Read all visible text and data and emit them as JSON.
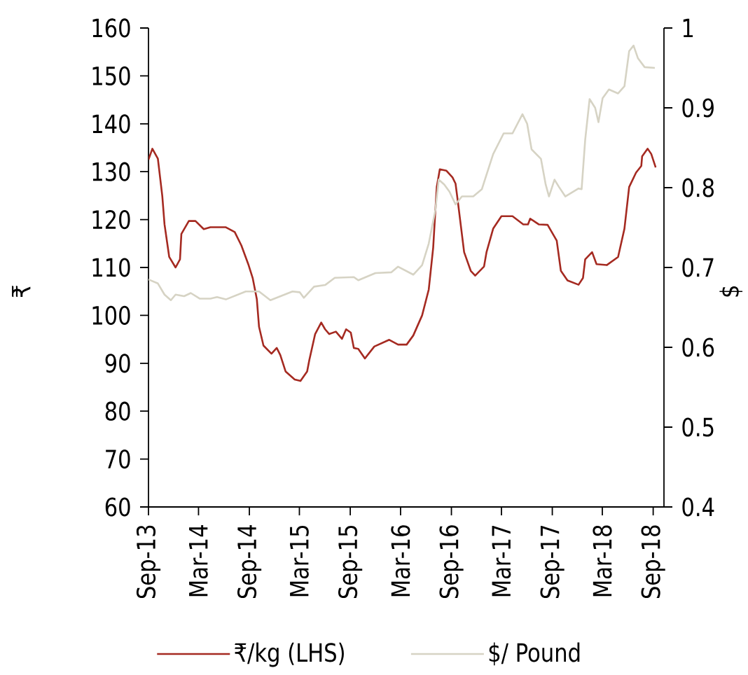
{
  "chart_data": {
    "type": "line",
    "ylabel": "₹",
    "y2label": "$",
    "xlim": [
      "2013-09-01",
      "2018-10-10"
    ],
    "xticks": [
      {
        "value": "2013-09-01",
        "label": "Sep-13"
      },
      {
        "value": "2014-03-01",
        "label": "Mar-14"
      },
      {
        "value": "2014-09-01",
        "label": "Sep-14"
      },
      {
        "value": "2015-03-01",
        "label": "Mar-15"
      },
      {
        "value": "2015-09-01",
        "label": "Sep-15"
      },
      {
        "value": "2016-03-01",
        "label": "Mar-16"
      },
      {
        "value": "2016-09-01",
        "label": "Sep-16"
      },
      {
        "value": "2017-03-01",
        "label": "Mar-17"
      },
      {
        "value": "2017-09-01",
        "label": "Sep-17"
      },
      {
        "value": "2018-03-01",
        "label": "Mar-18"
      },
      {
        "value": "2018-09-01",
        "label": "Sep-18"
      }
    ],
    "ylim": [
      60,
      160
    ],
    "yticks": [
      60,
      70,
      80,
      90,
      100,
      110,
      120,
      130,
      140,
      150,
      160
    ],
    "y2lim": [
      0.4,
      1
    ],
    "y2ticks": [
      0.4,
      0.5,
      0.6,
      0.7,
      0.8,
      0.9,
      1
    ],
    "legend": "bottom",
    "marker": "none",
    "series": [
      {
        "name": "₹/kg (LHS)",
        "color": "#a52a21",
        "x": [
          "2013-09-01",
          "2013-09-15",
          "2013-10-05",
          "2013-10-21",
          "2013-10-29",
          "2013-11-15",
          "2013-12-08",
          "2013-12-24",
          "2013-12-29",
          "2014-01-25",
          "2014-02-18",
          "2014-03-20",
          "2014-04-13",
          "2014-06-08",
          "2014-07-10",
          "2014-08-03",
          "2014-08-28",
          "2014-09-13",
          "2014-09-28",
          "2014-10-06",
          "2014-10-22",
          "2014-11-20",
          "2014-12-09",
          "2014-12-22",
          "2015-01-10",
          "2015-02-12",
          "2015-03-05",
          "2015-03-29",
          "2015-04-06",
          "2015-04-27",
          "2015-05-19",
          "2015-06-02",
          "2015-06-17",
          "2015-07-11",
          "2015-08-02",
          "2015-08-17",
          "2015-09-03",
          "2015-09-14",
          "2015-09-30",
          "2015-10-24",
          "2015-11-27",
          "2016-01-20",
          "2016-02-21",
          "2016-03-23",
          "2016-04-16",
          "2016-05-18",
          "2016-06-11",
          "2016-06-27",
          "2016-07-10",
          "2016-07-21",
          "2016-08-14",
          "2016-09-05",
          "2016-09-16",
          "2016-09-24",
          "2016-10-17",
          "2016-11-10",
          "2016-11-26",
          "2016-12-28",
          "2017-01-06",
          "2017-01-30",
          "2017-03-01",
          "2017-04-10",
          "2017-05-19",
          "2017-06-05",
          "2017-06-13",
          "2017-07-14",
          "2017-08-15",
          "2017-09-17",
          "2017-10-02",
          "2017-10-26",
          "2017-12-05",
          "2017-12-21",
          "2017-12-29",
          "2018-01-23",
          "2018-02-08",
          "2018-03-17",
          "2018-04-27",
          "2018-05-20",
          "2018-06-06",
          "2018-07-01",
          "2018-07-20",
          "2018-07-23",
          "2018-08-12",
          "2018-08-25",
          "2018-09-10"
        ],
        "values": [
          132.5,
          134.8,
          132.7,
          124.9,
          119,
          112.2,
          110,
          111.7,
          117,
          119.7,
          119.7,
          118,
          118.4,
          118.4,
          117.4,
          114.6,
          110.7,
          107.8,
          103.4,
          97.6,
          93.7,
          92,
          93.2,
          91.7,
          88.3,
          86.6,
          86.3,
          88.3,
          90.7,
          96.1,
          98.5,
          97.1,
          96.1,
          96.6,
          95.1,
          97.1,
          96.4,
          93.2,
          93,
          91,
          93.5,
          94.9,
          93.9,
          93.9,
          95.8,
          100,
          105.4,
          114.1,
          126.8,
          130.5,
          130.2,
          128.8,
          127.5,
          123.9,
          113.2,
          109.3,
          108.3,
          110.2,
          113.2,
          118.1,
          120.7,
          120.7,
          119,
          119,
          120.2,
          119,
          118.9,
          115.6,
          109.3,
          107.3,
          106.4,
          107.8,
          111.7,
          113.2,
          110.7,
          110.5,
          112.2,
          118.1,
          126.8,
          129.8,
          131.2,
          133.2,
          134.8,
          133.7,
          130.9
        ]
      },
      {
        "name": "$/ Pound",
        "color": "#d6d3c4",
        "axis": "y2",
        "x": [
          "2013-09-01",
          "2013-10-05",
          "2013-10-29",
          "2013-11-21",
          "2013-12-08",
          "2014-01-08",
          "2014-02-01",
          "2014-03-05",
          "2014-04-13",
          "2014-05-07",
          "2014-06-08",
          "2014-08-19",
          "2014-10-06",
          "2014-11-16",
          "2015-02-04",
          "2015-03-02",
          "2015-03-17",
          "2015-04-23",
          "2015-06-02",
          "2015-07-07",
          "2015-09-14",
          "2015-09-30",
          "2015-12-01",
          "2016-01-28",
          "2016-02-21",
          "2016-04-16",
          "2016-05-18",
          "2016-06-11",
          "2016-07-05",
          "2016-07-17",
          "2016-08-06",
          "2016-08-25",
          "2016-09-16",
          "2016-10-09",
          "2016-11-19",
          "2016-12-20",
          "2017-01-30",
          "2017-03-09",
          "2017-04-10",
          "2017-05-16",
          "2017-06-02",
          "2017-06-18",
          "2017-07-22",
          "2017-08-08",
          "2017-08-20",
          "2017-09-09",
          "2017-09-25",
          "2017-10-18",
          "2017-12-05",
          "2017-12-16",
          "2017-12-29",
          "2018-01-14",
          "2018-02-03",
          "2018-02-15",
          "2018-03-02",
          "2018-03-25",
          "2018-04-27",
          "2018-05-20",
          "2018-06-06",
          "2018-06-22",
          "2018-07-08",
          "2018-08-01",
          "2018-09-07"
        ],
        "values": [
          0.685,
          0.68,
          0.666,
          0.659,
          0.666,
          0.664,
          0.668,
          0.661,
          0.661,
          0.663,
          0.66,
          0.67,
          0.67,
          0.659,
          0.67,
          0.669,
          0.662,
          0.676,
          0.678,
          0.687,
          0.688,
          0.684,
          0.693,
          0.694,
          0.701,
          0.691,
          0.703,
          0.73,
          0.772,
          0.81,
          0.804,
          0.795,
          0.779,
          0.789,
          0.789,
          0.798,
          0.842,
          0.868,
          0.868,
          0.892,
          0.88,
          0.848,
          0.836,
          0.804,
          0.789,
          0.81,
          0.801,
          0.789,
          0.799,
          0.798,
          0.86,
          0.911,
          0.9,
          0.882,
          0.912,
          0.923,
          0.918,
          0.927,
          0.971,
          0.978,
          0.962,
          0.951,
          0.95
        ]
      }
    ]
  }
}
